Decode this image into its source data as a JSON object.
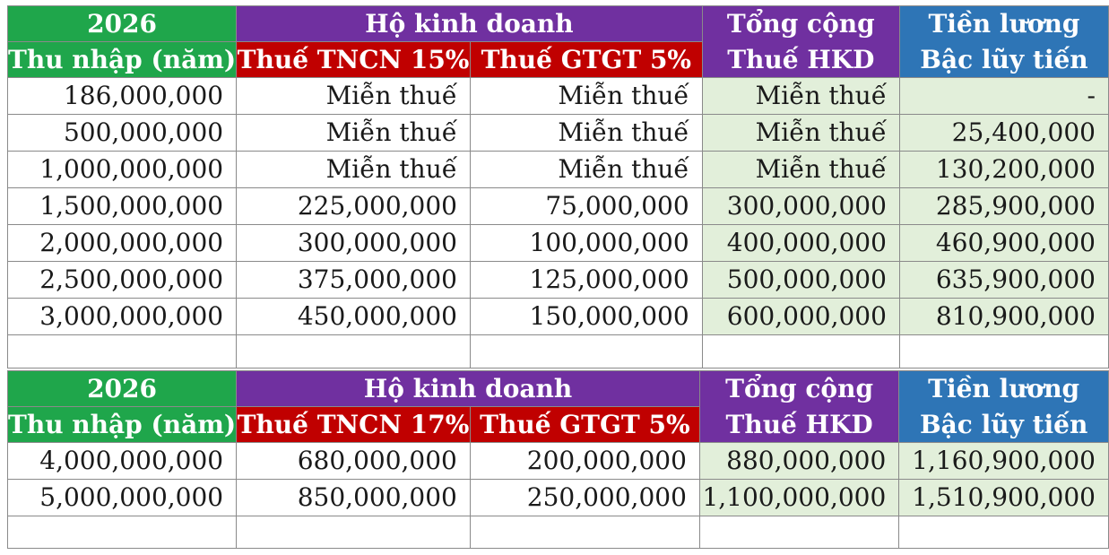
{
  "table1": {
    "header": {
      "year": "2026",
      "income": "Thu nhập (năm)",
      "business": "Hộ kinh doanh",
      "pit": "Thuế TNCN 15%",
      "vat": "Thuế GTGT 5%",
      "total_line1": "Tổng cộng",
      "total_line2": "Thuế HKD",
      "salary_line1": "Tiền lương",
      "salary_line2": "Bậc lũy tiến"
    },
    "rows": [
      {
        "income": "186,000,000",
        "pit": "Miễn thuế",
        "vat": "Miễn thuế",
        "total": "Miễn thuế",
        "salary": "-"
      },
      {
        "income": "500,000,000",
        "pit": "Miễn thuế",
        "vat": "Miễn thuế",
        "total": "Miễn thuế",
        "salary": "25,400,000"
      },
      {
        "income": "1,000,000,000",
        "pit": "Miễn thuế",
        "vat": "Miễn thuế",
        "total": "Miễn thuế",
        "salary": "130,200,000"
      },
      {
        "income": "1,500,000,000",
        "pit": "225,000,000",
        "vat": "75,000,000",
        "total": "300,000,000",
        "salary": "285,900,000"
      },
      {
        "income": "2,000,000,000",
        "pit": "300,000,000",
        "vat": "100,000,000",
        "total": "400,000,000",
        "salary": "460,900,000"
      },
      {
        "income": "2,500,000,000",
        "pit": "375,000,000",
        "vat": "125,000,000",
        "total": "500,000,000",
        "salary": "635,900,000"
      },
      {
        "income": "3,000,000,000",
        "pit": "450,000,000",
        "vat": "150,000,000",
        "total": "600,000,000",
        "salary": "810,900,000"
      }
    ]
  },
  "table2": {
    "header": {
      "year": "2026",
      "income": "Thu nhập (năm)",
      "business": "Hộ kinh doanh",
      "pit": "Thuế TNCN 17%",
      "vat": "Thuế GTGT 5%",
      "total_line1": "Tổng cộng",
      "total_line2": "Thuế HKD",
      "salary_line1": "Tiền lương",
      "salary_line2": "Bậc lũy tiến"
    },
    "rows": [
      {
        "income": "4,000,000,000",
        "pit": "680,000,000",
        "vat": "200,000,000",
        "total": "880,000,000",
        "salary": "1,160,900,000"
      },
      {
        "income": "5,000,000,000",
        "pit": "850,000,000",
        "vat": "250,000,000",
        "total": "1,100,000,000",
        "salary": "1,510,900,000"
      }
    ]
  },
  "colors": {
    "green_header": "#1fa64b",
    "purple_header": "#7030a0",
    "red_header": "#c00000",
    "blue_header": "#2e75b6",
    "light_green_cell": "#e2efda"
  }
}
